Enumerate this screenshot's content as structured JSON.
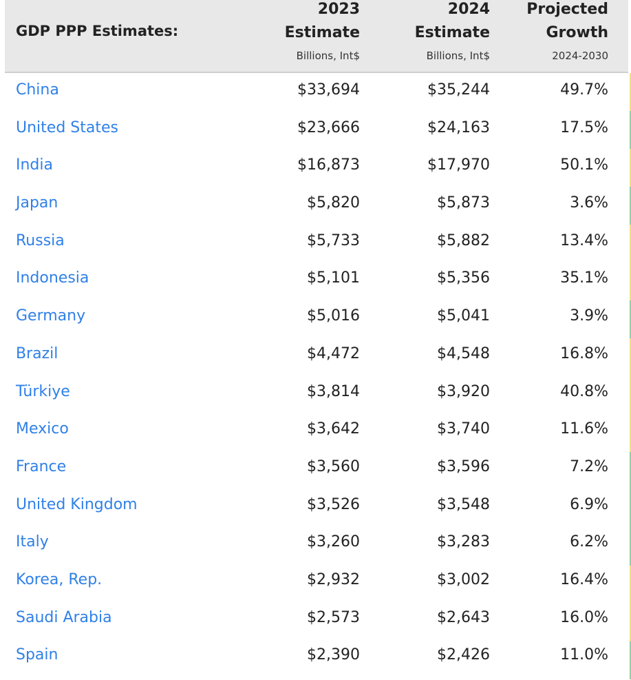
{
  "table": {
    "title": "GDP PPP Estimates:",
    "columns": [
      {
        "line1": "2023",
        "line2": "Estimate",
        "unit": "Billions, Int$"
      },
      {
        "line1": "2024",
        "line2": "Estimate",
        "unit": "Billions, Int$"
      },
      {
        "line1": "Projected",
        "line2": "Growth",
        "unit": "2024-2030"
      }
    ],
    "rows": [
      {
        "country": "China",
        "gdp2023": "$33,694",
        "gdp2024": "$35,244",
        "growth": "49.7%"
      },
      {
        "country": "United States",
        "gdp2023": "$23,666",
        "gdp2024": "$24,163",
        "growth": "17.5%"
      },
      {
        "country": "India",
        "gdp2023": "$16,873",
        "gdp2024": "$17,970",
        "growth": "50.1%"
      },
      {
        "country": "Japan",
        "gdp2023": "$5,820",
        "gdp2024": "$5,873",
        "growth": "3.6%"
      },
      {
        "country": "Russia",
        "gdp2023": "$5,733",
        "gdp2024": "$5,882",
        "growth": "13.4%"
      },
      {
        "country": "Indonesia",
        "gdp2023": "$5,101",
        "gdp2024": "$5,356",
        "growth": "35.1%"
      },
      {
        "country": "Germany",
        "gdp2023": "$5,016",
        "gdp2024": "$5,041",
        "growth": "3.9%"
      },
      {
        "country": "Brazil",
        "gdp2023": "$4,472",
        "gdp2024": "$4,548",
        "growth": "16.8%"
      },
      {
        "country": "Türkiye",
        "gdp2023": "$3,814",
        "gdp2024": "$3,920",
        "growth": "40.8%"
      },
      {
        "country": "Mexico",
        "gdp2023": "$3,642",
        "gdp2024": "$3,740",
        "growth": "11.6%"
      },
      {
        "country": "France",
        "gdp2023": "$3,560",
        "gdp2024": "$3,596",
        "growth": "7.2%"
      },
      {
        "country": "United Kingdom",
        "gdp2023": "$3,526",
        "gdp2024": "$3,548",
        "growth": "6.9%"
      },
      {
        "country": "Italy",
        "gdp2023": "$3,260",
        "gdp2024": "$3,283",
        "growth": "6.2%"
      },
      {
        "country": "Korea, Rep.",
        "gdp2023": "$2,932",
        "gdp2024": "$3,002",
        "growth": "16.4%"
      },
      {
        "country": "Saudi Arabia",
        "gdp2023": "$2,573",
        "gdp2024": "$2,643",
        "growth": "16.0%"
      },
      {
        "country": "Spain",
        "gdp2023": "$2,390",
        "gdp2024": "$2,426",
        "growth": "11.0%"
      }
    ]
  },
  "colors": {
    "link": "#2f80e8",
    "header_bg": "#e8e8e8",
    "text": "#222222",
    "edge_yellow": "#f2e27a",
    "edge_green": "#8fd0a2"
  }
}
